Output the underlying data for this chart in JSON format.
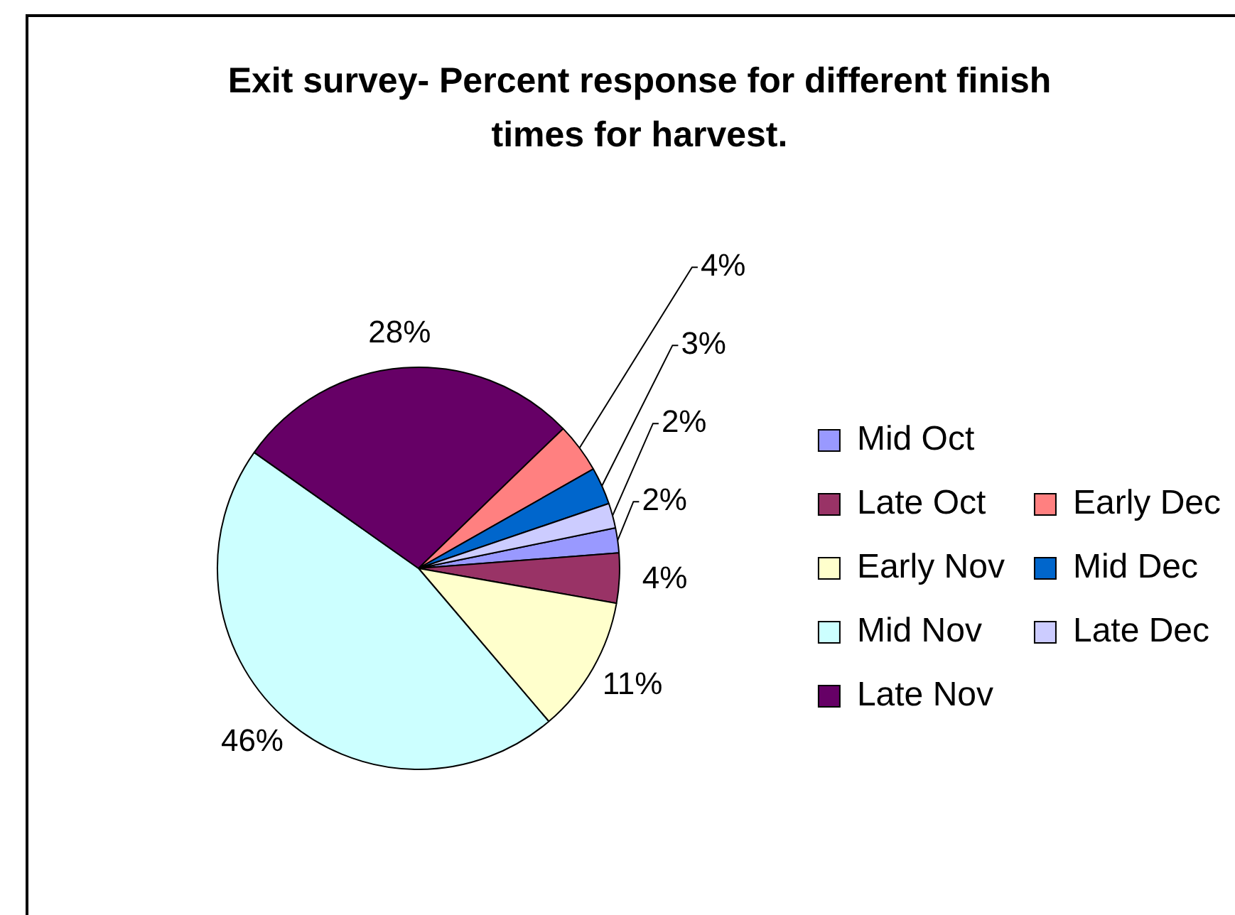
{
  "chart_data": {
    "type": "pie",
    "title": "Exit survey- Percent response for different finish times for harvest.",
    "categories": [
      "Mid Oct",
      "Late Oct",
      "Early Nov",
      "Mid Nov",
      "Late Nov",
      "Early Dec",
      "Mid Dec",
      "Late Dec"
    ],
    "values": [
      2,
      4,
      11,
      46,
      28,
      4,
      3,
      2
    ],
    "colors": [
      "#9999ff",
      "#993366",
      "#ffffcc",
      "#ccffff",
      "#660066",
      "#ff8080",
      "#0066cc",
      "#ccccff"
    ],
    "value_labels": [
      "2%",
      "4%",
      "11%",
      "46%",
      "28%",
      "4%",
      "3%",
      "2%"
    ],
    "legend": "right"
  }
}
